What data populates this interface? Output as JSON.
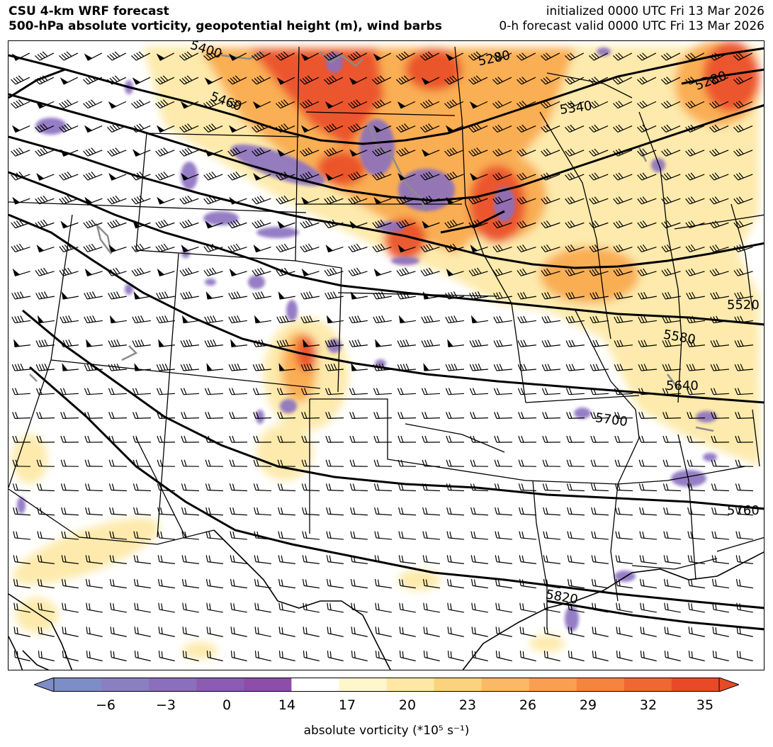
{
  "header": {
    "title_line1": "CSU 4-km WRF forecast",
    "title_line2": "500-hPa absolute vorticity, geopotential height (m), wind barbs",
    "init_text": "initialized 0000 UTC Fri 13 Mar 2026",
    "valid_text": "0-h forecast valid 0000 UTC Fri 13 Mar 2026"
  },
  "map": {
    "contour_labels": [
      "5400",
      "5460",
      "5280",
      "5340",
      "5280",
      "5520",
      "5580",
      "5640",
      "5700",
      "5760",
      "5820"
    ],
    "colors": {
      "contour": "#000000",
      "lakes_outline": "#8c8c8c",
      "vort_negative": "#8a6fc0",
      "vort_low": "#fde9a8",
      "vort_mid": "#f9a84a",
      "vort_high": "#ea4e2a"
    }
  },
  "colorbar": {
    "ticks": [
      "−6",
      "−3",
      "0",
      "14",
      "17",
      "20",
      "23",
      "26",
      "29",
      "32",
      "35"
    ],
    "label": "absolute vorticity (*10⁵ s⁻¹)",
    "colors": [
      "#7d8dc7",
      "#8a7fc2",
      "#8b6ebd",
      "#8c5cb4",
      "#8e4cab",
      "#ffffff",
      "#fff7cc",
      "#fee8a4",
      "#fdd27e",
      "#fbb965",
      "#f99f52",
      "#f5843f",
      "#ef6732",
      "#e84a27"
    ]
  }
}
